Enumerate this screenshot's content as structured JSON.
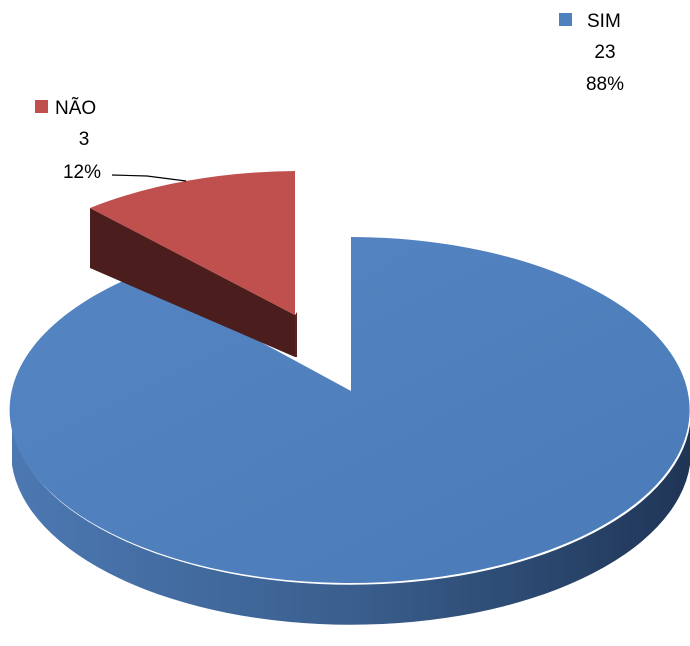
{
  "chart_data": {
    "type": "pie",
    "title": "",
    "legend": "labels-with-markers",
    "slices": [
      {
        "label": "SIM",
        "value": 23,
        "percent": "88%",
        "value_text": "23",
        "color": "#4F81BD"
      },
      {
        "label": "NÃO",
        "value": 3,
        "percent": "12%",
        "value_text": "3",
        "color": "#C0504D",
        "exploded": true
      }
    ]
  }
}
